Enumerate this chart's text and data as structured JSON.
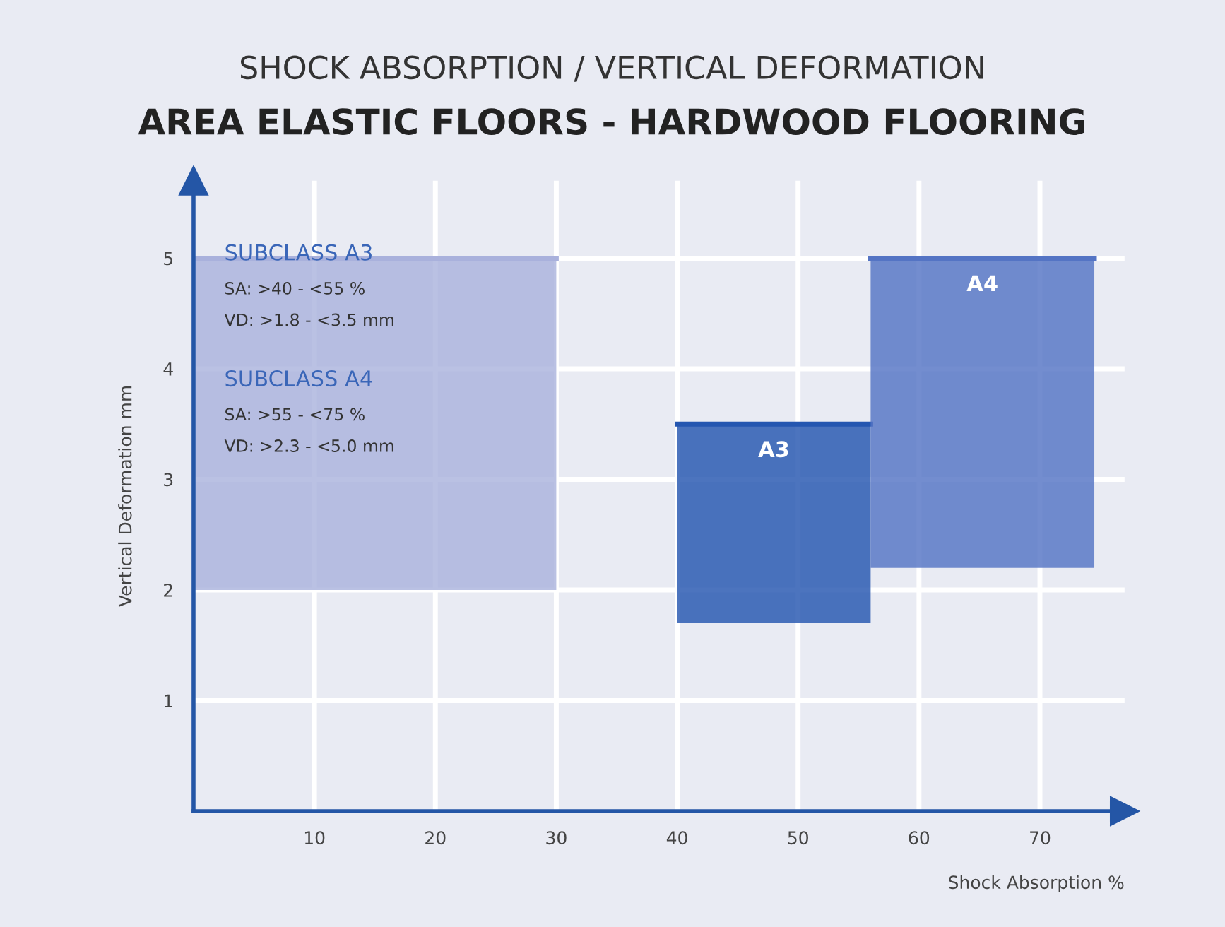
{
  "chart_data": {
    "type": "line",
    "title": "SHOCK ABSORPTION / VERTICAL DEFORMATION",
    "subtitle": "AREA ELASTIC FLOORS - HARDWOOD FLOORING",
    "xlabel": "Shock Absorption %",
    "ylabel": "Vertical Deformation mm",
    "series": [
      {
        "color": "#a9b1dc",
        "x": [
          0,
          30
        ],
        "values": [
          5,
          5
        ],
        "lower": [
          2,
          2
        ],
        "upper": [
          5,
          5
        ]
      },
      {
        "name": "A3",
        "color": "#2456b0",
        "x": [
          40,
          56
        ],
        "values": [
          3.5,
          3.5
        ],
        "lower": [
          1.7,
          1.7
        ],
        "upper": [
          3.5,
          3.5
        ]
      },
      {
        "name": "A4",
        "color": "#5474c4",
        "x": [
          56,
          74.5
        ],
        "values": [
          5,
          5
        ],
        "lower": [
          2.2,
          2.2
        ],
        "upper": [
          5,
          5
        ]
      }
    ],
    "xlim": [
      0,
      77
    ],
    "ylim": [
      0,
      5.7
    ],
    "xticks": [
      10,
      20,
      30,
      40,
      50,
      60,
      70
    ],
    "yticks": [
      1,
      2,
      3,
      4,
      5
    ],
    "grid": true,
    "legend": false,
    "annotations": [
      "SUBCLASS A3",
      "SA: >40 - <55 %",
      "VD: >1.8 - <3.5 mm",
      "SUBCLASS A4",
      "SA: >55 - <75 %",
      "VD: >2.3 - <5.0 mm"
    ]
  }
}
